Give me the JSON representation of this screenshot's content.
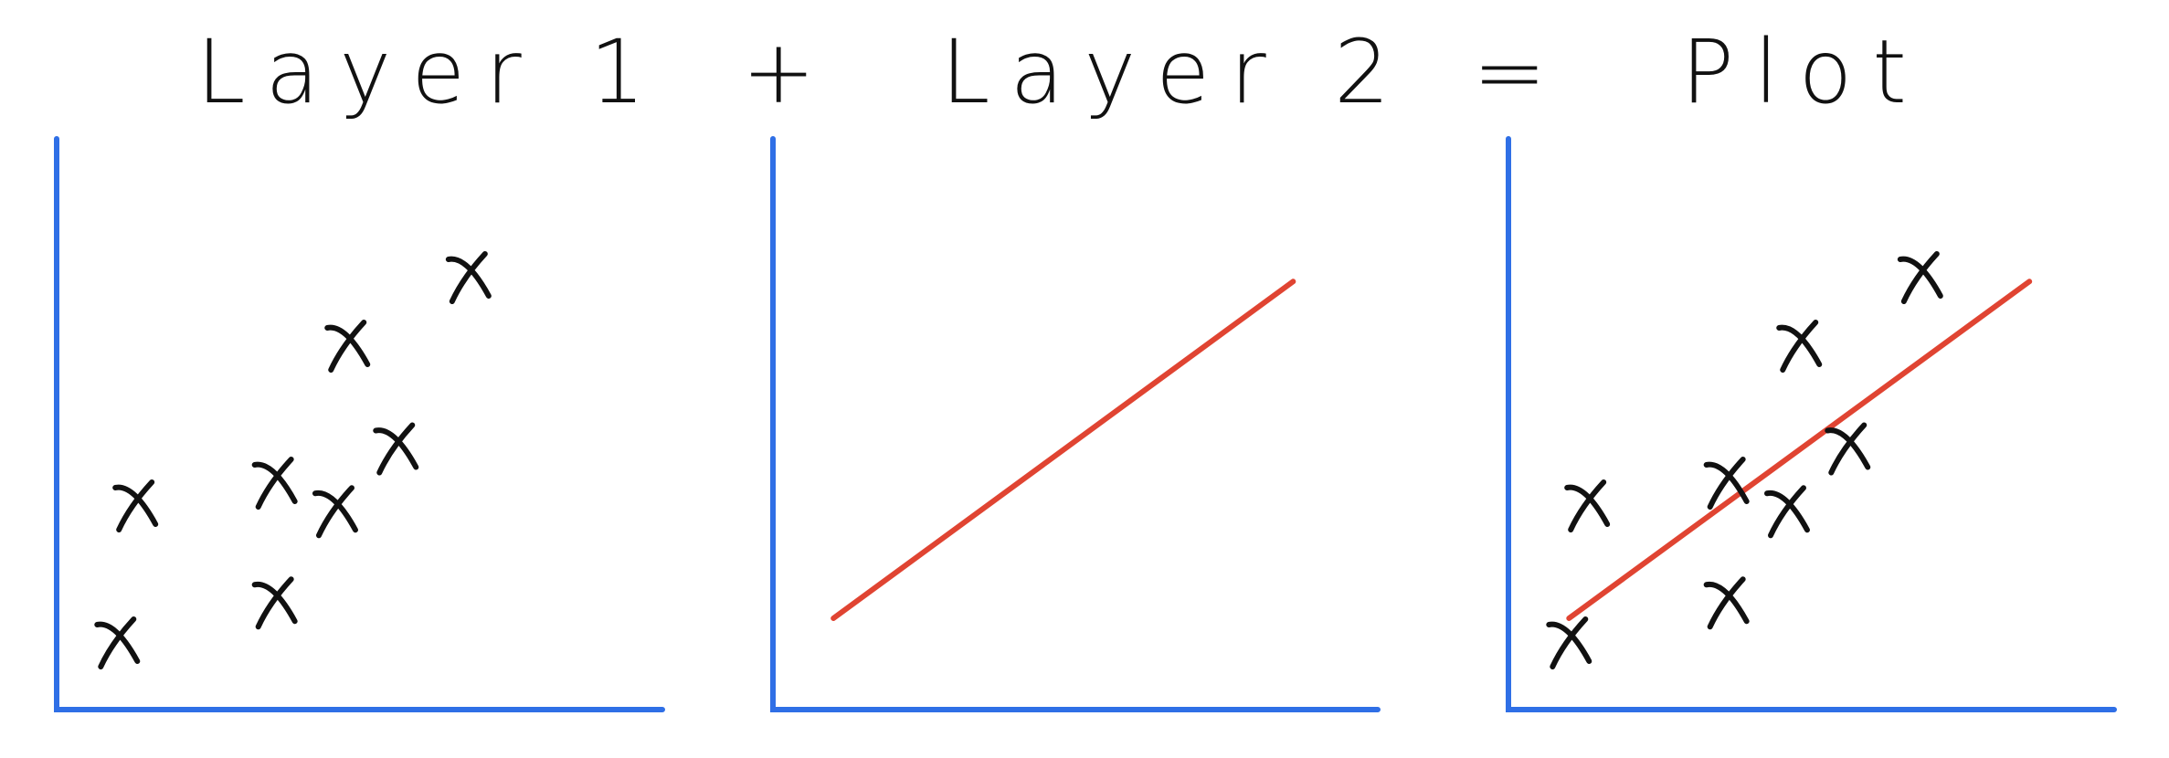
{
  "title": {
    "left": "Layer 1",
    "plus": "+",
    "middle": "Layer 2",
    "equals": "=",
    "right": "Plot"
  },
  "colors": {
    "axis": "#2f6fe6",
    "line": "#e04432",
    "ink": "#111111"
  },
  "panels": {
    "layer1": {
      "points": [
        [
          1.0,
          1.2
        ],
        [
          1.3,
          3.6
        ],
        [
          3.6,
          4.0
        ],
        [
          3.6,
          1.9
        ],
        [
          4.6,
          3.5
        ],
        [
          5.6,
          4.6
        ],
        [
          4.8,
          6.4
        ],
        [
          6.8,
          7.6
        ]
      ]
    },
    "layer2": {
      "line": [
        [
          1.0,
          1.6
        ],
        [
          8.6,
          7.5
        ]
      ]
    },
    "plot": {
      "points": [
        [
          1.0,
          1.2
        ],
        [
          1.3,
          3.6
        ],
        [
          3.6,
          4.0
        ],
        [
          3.6,
          1.9
        ],
        [
          4.6,
          3.5
        ],
        [
          5.6,
          4.6
        ],
        [
          4.8,
          6.4
        ],
        [
          6.8,
          7.6
        ]
      ],
      "line": [
        [
          1.0,
          1.6
        ],
        [
          8.6,
          7.5
        ]
      ]
    }
  }
}
